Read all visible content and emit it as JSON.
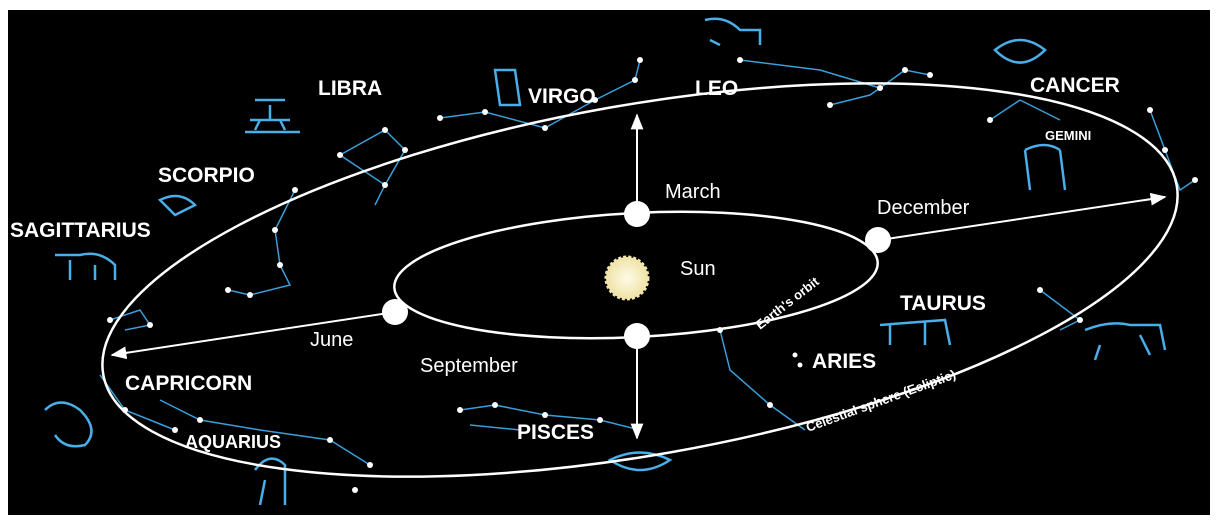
{
  "constellations": [
    "LIBRA",
    "VIRGO",
    "LEO",
    "CANCER",
    "GEMINI",
    "SCORPIO",
    "SAGITTARIUS",
    "CAPRICORN",
    "AQUARIUS",
    "PISCES",
    "ARIES",
    "TAURUS"
  ],
  "months": [
    "March",
    "December",
    "June",
    "September"
  ],
  "labels": {
    "sun": "Sun",
    "earth_orbit": "Earth's orbit",
    "ecliptic": "Celestial sphere (Ecliptic)"
  }
}
